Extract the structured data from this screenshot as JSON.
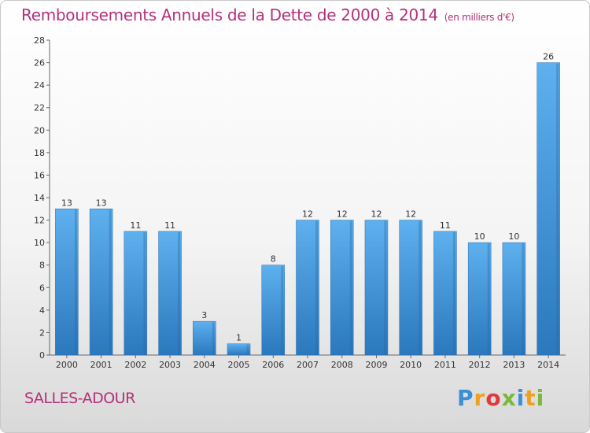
{
  "title": "Remboursements Annuels de la Dette de 2000 à 2014",
  "subtitle": "(en milliers d'€)",
  "commune": "SALLES-ADOUR",
  "logo": {
    "letters": [
      "P",
      "r",
      "o",
      "x",
      "i",
      "t",
      "i"
    ],
    "colors": [
      "#3b8fd6",
      "#f0a020",
      "#e03a3a",
      "#7ab83a",
      "#3b8fd6",
      "#f0a020",
      "#7ab83a"
    ]
  },
  "colors": {
    "bar_light": "#5aabeb",
    "bar_dark": "#2f7fc4",
    "title": "#b5307a"
  },
  "chart_data": {
    "type": "bar",
    "title": "Remboursements Annuels de la Dette de 2000 à 2014",
    "categories": [
      "2000",
      "2001",
      "2002",
      "2003",
      "2004",
      "2005",
      "2006",
      "2007",
      "2008",
      "2009",
      "2010",
      "2011",
      "2012",
      "2013",
      "2014"
    ],
    "values": [
      13,
      13,
      11,
      11,
      3,
      1,
      8,
      12,
      12,
      12,
      12,
      11,
      10,
      10,
      26
    ],
    "ylim": [
      0,
      28
    ],
    "yticks": [
      0,
      2,
      4,
      6,
      8,
      10,
      12,
      14,
      16,
      18,
      20,
      22,
      24,
      26,
      28
    ],
    "grid": false,
    "legend": "none"
  }
}
